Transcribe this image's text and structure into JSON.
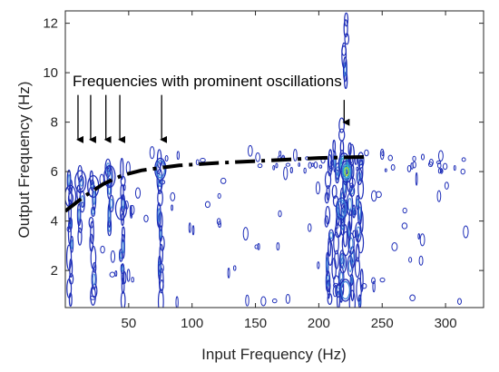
{
  "chart_data": {
    "type": "contour",
    "title": "",
    "xlabel": "Input Frequency (Hz)",
    "ylabel": "Output Frequency (Hz)",
    "xlim": [
      0,
      330
    ],
    "ylim": [
      0.5,
      12.5
    ],
    "xticks": [
      50,
      100,
      150,
      200,
      250,
      300
    ],
    "yticks": [
      2,
      4,
      6,
      8,
      10,
      12
    ],
    "grid": false,
    "colors": {
      "low": "#1f2fb8",
      "mid": "#3a7fd6",
      "high": "#29b5c8",
      "peak": "#9fdc3a",
      "trend": "#000000"
    },
    "trend_line": {
      "style": "dash-dot",
      "x": [
        0,
        15,
        30,
        45,
        60,
        75,
        90,
        120,
        160,
        200,
        240
      ],
      "y": [
        4.4,
        5.0,
        5.5,
        5.85,
        6.05,
        6.15,
        6.25,
        6.35,
        6.45,
        6.55,
        6.6
      ]
    },
    "annotation": {
      "text": "Frequencies with prominent oscillations",
      "arrows_x": [
        10,
        20,
        32,
        43,
        76,
        220
      ],
      "arrow_tip_y": 7.0,
      "arrow_tip_y_last": 7.7,
      "arrow_top_y": 9.1
    },
    "hotspots": [
      {
        "x": 4,
        "y": 5.0,
        "level": 1
      },
      {
        "x": 12,
        "y": 5.6,
        "level": 1
      },
      {
        "x": 22,
        "y": 5.4,
        "level": 1
      },
      {
        "x": 35,
        "y": 5.8,
        "level": 1
      },
      {
        "x": 44,
        "y": 4.5,
        "level": 1
      },
      {
        "x": 75,
        "y": 6.1,
        "level": 2
      },
      {
        "x": 220,
        "y": 6.3,
        "level": 3
      },
      {
        "x": 222,
        "y": 6.0,
        "level": 4
      },
      {
        "x": 218,
        "y": 4.5,
        "level": 2
      },
      {
        "x": 221,
        "y": 1.2,
        "level": 2
      }
    ],
    "bands": [
      {
        "x": 4,
        "ymin": 0.6,
        "ymax": 6.0,
        "width": 3
      },
      {
        "x": 12,
        "ymin": 3.0,
        "ymax": 6.3,
        "width": 4
      },
      {
        "x": 22,
        "ymin": 0.6,
        "ymax": 6.1,
        "width": 4
      },
      {
        "x": 35,
        "ymin": 3.5,
        "ymax": 6.4,
        "width": 4
      },
      {
        "x": 45,
        "ymin": 0.6,
        "ymax": 6.4,
        "width": 3
      },
      {
        "x": 75,
        "ymin": 0.6,
        "ymax": 6.8,
        "width": 4
      },
      {
        "x": 208,
        "ymin": 0.6,
        "ymax": 6.8,
        "width": 5
      },
      {
        "x": 214,
        "ymin": 0.6,
        "ymax": 7.2,
        "width": 5
      },
      {
        "x": 220,
        "ymin": 0.6,
        "ymax": 8.2,
        "width": 6
      },
      {
        "x": 226,
        "ymin": 0.6,
        "ymax": 7.2,
        "width": 5
      },
      {
        "x": 232,
        "ymin": 0.6,
        "ymax": 6.8,
        "width": 5
      },
      {
        "x": 221,
        "ymin": 9.5,
        "ymax": 12.5,
        "width": 3
      }
    ]
  }
}
